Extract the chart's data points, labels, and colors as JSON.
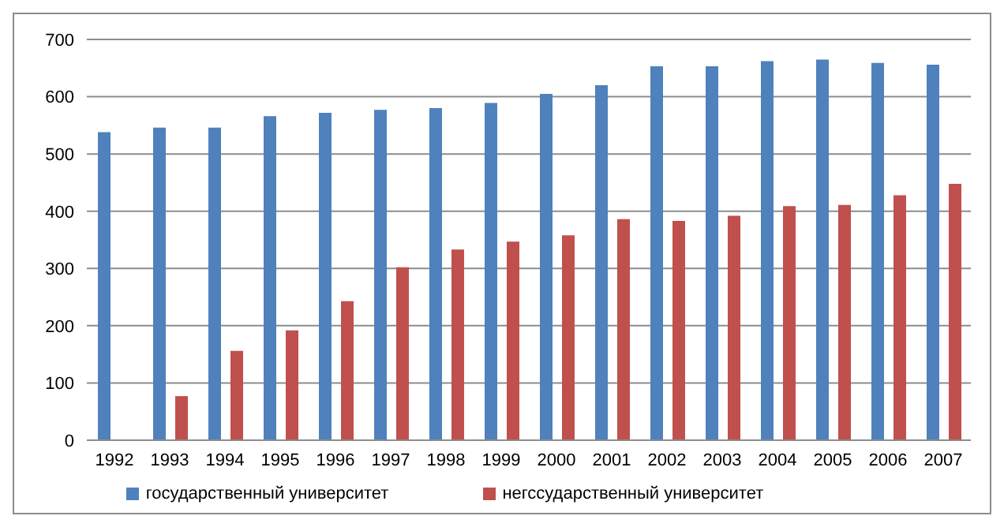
{
  "chart_data": {
    "type": "bar",
    "categories": [
      "1992",
      "1993",
      "1994",
      "1995",
      "1996",
      "1997",
      "1998",
      "1999",
      "2000",
      "2001",
      "2002",
      "2003",
      "2004",
      "2005",
      "2006",
      "2007"
    ],
    "series": [
      {
        "name": "государственный университет",
        "color": "#4f81bd",
        "values": [
          538,
          546,
          546,
          566,
          572,
          577,
          580,
          589,
          605,
          620,
          653,
          653,
          662,
          665,
          659,
          656
        ]
      },
      {
        "name": "негссударственный университет",
        "color": "#c0504d",
        "values": [
          null,
          77,
          156,
          192,
          243,
          302,
          333,
          347,
          358,
          386,
          383,
          392,
          409,
          411,
          428,
          448
        ]
      }
    ],
    "ylim": [
      0,
      700
    ],
    "yticks": [
      0,
      100,
      200,
      300,
      400,
      500,
      600,
      700
    ],
    "grid": "y",
    "legend": "bottom"
  }
}
